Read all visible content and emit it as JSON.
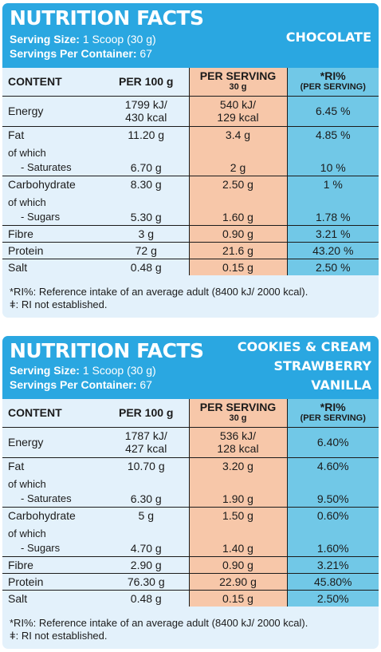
{
  "panels": [
    {
      "title": "NUTRITION FACTS",
      "serving_size_label": "Serving Size:",
      "serving_size_value": "1 Scoop (30 g)",
      "servings_label": "Servings Per Container:",
      "servings_value": "67",
      "flavors": [
        "CHOCOLATE"
      ],
      "columns": {
        "content": "CONTENT",
        "per100": "PER 100 g",
        "per_serving": "PER SERVING",
        "per_serving_sub": "30 g",
        "ri": "*RI%",
        "ri_sub": "(PER SERVING)"
      },
      "rows": {
        "energy": {
          "label": "Energy",
          "per100_kj": "1799 kJ/",
          "per100_kcal": "430 kcal",
          "serv_kj": "540 kJ/",
          "serv_kcal": "129 kcal",
          "ri": "6.45 %"
        },
        "fat": {
          "label": "Fat",
          "per100": "11.20 g",
          "serv": "3.4 g",
          "ri": "4.85 %"
        },
        "of_which_1": "of which",
        "saturates": {
          "label": "- Saturates",
          "per100": "6.70 g",
          "serv": "2 g",
          "ri": "10 %"
        },
        "carbs": {
          "label": "Carbohydrate",
          "per100": "8.30 g",
          "serv": "2.50 g",
          "ri": "1 %"
        },
        "of_which_2": "of which",
        "sugars": {
          "label": "- Sugars",
          "per100": "5.30 g",
          "serv": "1.60 g",
          "ri": "1.78 %"
        },
        "fibre": {
          "label": "Fibre",
          "per100": "3 g",
          "serv": "0.90 g",
          "ri": "3.21 %"
        },
        "protein": {
          "label": "Protein",
          "per100": "72 g",
          "serv": "21.6 g",
          "ri": "43.20 %"
        },
        "salt": {
          "label": "Salt",
          "per100": "0.48 g",
          "serv": "0.15 g",
          "ri": "2.50 %"
        }
      },
      "footnote_1": "*RI%:  Reference intake of an average adult (8400 kJ/ 2000 kcal).",
      "footnote_2": "ǂ: RI not established."
    },
    {
      "title": "NUTRITION FACTS",
      "serving_size_label": "Serving Size:",
      "serving_size_value": "1 Scoop (30 g)",
      "servings_label": "Servings Per Container:",
      "servings_value": "67",
      "flavors": [
        "COOKIES & CREAM",
        "STRAWBERRY",
        "VANILLA"
      ],
      "columns": {
        "content": "CONTENT",
        "per100": "PER 100 g",
        "per_serving": "PER SERVING",
        "per_serving_sub": "30 g",
        "ri": "*RI%",
        "ri_sub": "(PER SERVING)"
      },
      "rows": {
        "energy": {
          "label": "Energy",
          "per100_kj": "1787 kJ/",
          "per100_kcal": "427 kcal",
          "serv_kj": "536 kJ/",
          "serv_kcal": "128 kcal",
          "ri": "6.40%"
        },
        "fat": {
          "label": "Fat",
          "per100": "10.70 g",
          "serv": "3.20 g",
          "ri": "4.60%"
        },
        "of_which_1": "of which",
        "saturates": {
          "label": "- Saturates",
          "per100": "6.30 g",
          "serv": "1.90 g",
          "ri": "9.50%"
        },
        "carbs": {
          "label": "Carbohydrate",
          "per100": "5 g",
          "serv": "1.50 g",
          "ri": "0.60%"
        },
        "of_which_2": "of which",
        "sugars": {
          "label": "- Sugars",
          "per100": "4.70 g",
          "serv": "1.40 g",
          "ri": "1.60%"
        },
        "fibre": {
          "label": "Fibre",
          "per100": "2.90 g",
          "serv": "0.90 g",
          "ri": "3.21%"
        },
        "protein": {
          "label": "Protein",
          "per100": "76.30 g",
          "serv": "22.90 g",
          "ri": "45.80%"
        },
        "salt": {
          "label": "Salt",
          "per100": "0.48 g",
          "serv": "0.15 g",
          "ri": "2.50%"
        }
      },
      "footnote_1": "*RI%:  Reference intake of an average adult (8400 kJ/ 2000 kcal).",
      "footnote_2": "ǂ: RI not established."
    }
  ]
}
